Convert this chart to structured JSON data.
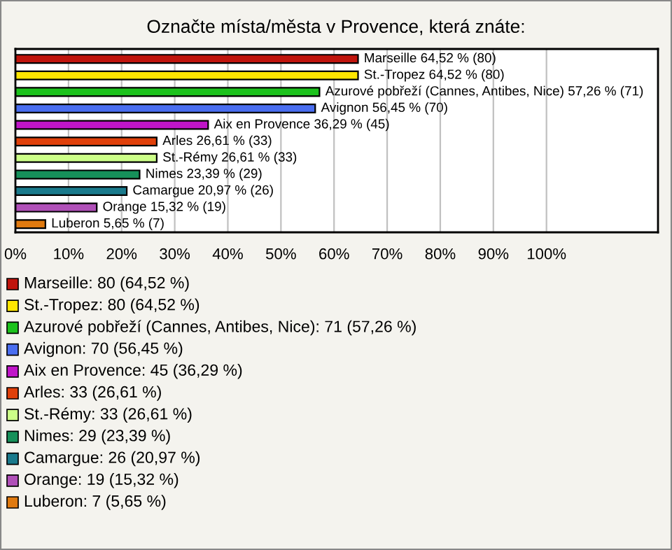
{
  "chart_data": {
    "type": "bar",
    "orientation": "horizontal",
    "title": "Označte místa/města v Provence, která znáte:",
    "categories": [
      null,
      null,
      null,
      null,
      null,
      null,
      null,
      null,
      null,
      null,
      null
    ],
    "values": [
      64.52,
      64.52,
      57.26,
      56.45,
      36.29,
      26.61,
      26.61,
      23.39,
      20.97,
      15.32,
      5.65
    ],
    "colors": [
      "#c0150d",
      "#ffe600",
      "#1cc21c",
      "#4a6ef0",
      "#c015c8",
      "#e0400a",
      "#ccff88",
      "#16905a",
      "#1a7a8c",
      "#b050b8",
      "#e07a10"
    ],
    "value_labels": [
      "Marseille 64,52 % (80)",
      "St.-Tropez 64,52 % (80)",
      "Azurové pobřeží (Cannes, Antibes, Nice) 57,26 % (71)",
      "Avignon 56,45 % (70)",
      "Aix en Provence 36,29 % (45)",
      "Arles 26,61 % (33)",
      "St.-Rémy 26,61 % (33)",
      "Nimes 23,39 % (29)",
      "Camargue 20,97 % (26)",
      "Orange 15,32 % (19)",
      "Luberon 5,65 % (7)"
    ],
    "xlim": [
      0,
      121
    ],
    "xticks": [
      {
        "value": 0,
        "label": "0%"
      },
      {
        "value": 10,
        "label": "10%"
      },
      {
        "value": 20,
        "label": "20%"
      },
      {
        "value": 30,
        "label": "30%"
      },
      {
        "value": 40,
        "label": "40%"
      },
      {
        "value": 50,
        "label": "50%"
      },
      {
        "value": 60,
        "label": "60%"
      },
      {
        "value": 70,
        "label": "70%"
      },
      {
        "value": 80,
        "label": "80%"
      },
      {
        "value": 90,
        "label": "90%"
      },
      {
        "value": 100,
        "label": "100%"
      }
    ],
    "grid": "x",
    "annotations": [
      "Marseille: 80 (64,52 %)",
      "St.-Tropez: 80 (64,52 %)",
      "Azurové pobřeží (Cannes, Antibes, Nice): 71 (57,26 %)",
      "Avignon: 70 (56,45 %)",
      "Aix en Provence: 45 (36,29 %)",
      "Arles: 33 (26,61 %)",
      "St.-Rémy: 33 (26,61 %)",
      "Nimes: 29 (23,39 %)",
      "Camargue: 26 (20,97 %)",
      "Orange: 19 (15,32 %)",
      "Luberon: 7 (5,65 %)"
    ]
  }
}
